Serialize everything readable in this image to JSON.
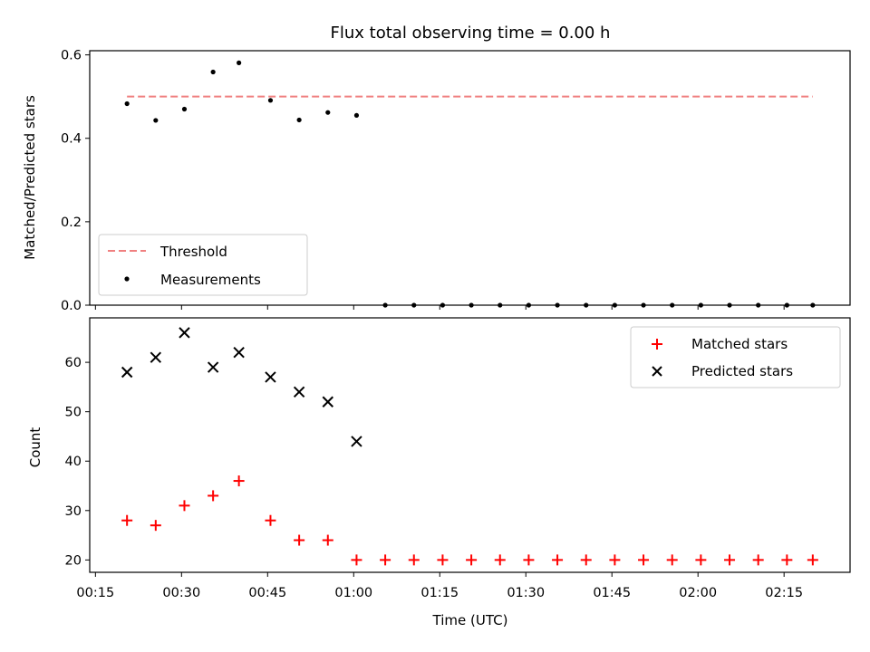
{
  "chart_data": [
    {
      "type": "scatter",
      "title": "Flux total observing time = 0.00 h",
      "xlabel": "",
      "ylabel": "Matched/Predicted stars",
      "ylim": [
        0,
        0.61
      ],
      "xlim": [
        "00:14:00",
        "02:26:30"
      ],
      "yticks": [
        0,
        0.2,
        0.4,
        0.6
      ],
      "ytick_labels": [
        "0.0",
        "0.2",
        "0.4",
        "0.6"
      ],
      "grid": false,
      "legend_position": "lower-left",
      "series": [
        {
          "name": "Threshold",
          "style": "dashed-line",
          "color": "#f08080",
          "x": [
            "00:20:30",
            "02:20:00"
          ],
          "y": [
            0.5,
            0.5
          ]
        },
        {
          "name": "Measurements",
          "style": "dot",
          "color": "#000000",
          "x": [
            "00:20:30",
            "00:25:30",
            "00:30:30",
            "00:35:30",
            "00:40:00",
            "00:45:30",
            "00:50:30",
            "00:55:30",
            "01:00:30",
            "01:05:30",
            "01:10:30",
            "01:15:30",
            "01:20:30",
            "01:25:30",
            "01:30:30",
            "01:35:30",
            "01:40:30",
            "01:45:30",
            "01:50:30",
            "01:55:30",
            "02:00:30",
            "02:05:30",
            "02:10:30",
            "02:15:30",
            "02:20:00"
          ],
          "y": [
            0.483,
            0.443,
            0.47,
            0.559,
            0.581,
            0.491,
            0.444,
            0.462,
            0.455,
            0,
            0,
            0,
            0,
            0,
            0,
            0,
            0,
            0,
            0,
            0,
            0,
            0,
            0,
            0,
            0
          ]
        }
      ]
    },
    {
      "type": "scatter",
      "title": "",
      "xlabel": "Time (UTC)",
      "ylabel": "Count",
      "ylim": [
        17.5,
        69
      ],
      "xlim": [
        "00:14:00",
        "02:26:30"
      ],
      "yticks": [
        20,
        30,
        40,
        50,
        60
      ],
      "ytick_labels": [
        "20",
        "30",
        "40",
        "50",
        "60"
      ],
      "xticks": [
        "00:15",
        "00:30",
        "00:45",
        "01:00",
        "01:15",
        "01:30",
        "01:45",
        "02:00",
        "02:15"
      ],
      "grid": false,
      "legend_position": "upper-right",
      "series": [
        {
          "name": "Matched stars",
          "marker": "plus",
          "color": "#ff0000",
          "x": [
            "00:20:30",
            "00:25:30",
            "00:30:30",
            "00:35:30",
            "00:40:00",
            "00:45:30",
            "00:50:30",
            "00:55:30",
            "01:00:30",
            "01:05:30",
            "01:10:30",
            "01:15:30",
            "01:20:30",
            "01:25:30",
            "01:30:30",
            "01:35:30",
            "01:40:30",
            "01:45:30",
            "01:50:30",
            "01:55:30",
            "02:00:30",
            "02:05:30",
            "02:10:30",
            "02:15:30",
            "02:20:00"
          ],
          "y": [
            28,
            27,
            31,
            33,
            36,
            28,
            24,
            24,
            20,
            20,
            20,
            20,
            20,
            20,
            20,
            20,
            20,
            20,
            20,
            20,
            20,
            20,
            20,
            20,
            20
          ]
        },
        {
          "name": "Predicted stars",
          "marker": "x",
          "color": "#000000",
          "x": [
            "00:20:30",
            "00:25:30",
            "00:30:30",
            "00:35:30",
            "00:40:00",
            "00:45:30",
            "00:50:30",
            "00:55:30",
            "01:00:30"
          ],
          "y": [
            58,
            61,
            66,
            59,
            62,
            57,
            54,
            52,
            44
          ]
        }
      ]
    }
  ]
}
